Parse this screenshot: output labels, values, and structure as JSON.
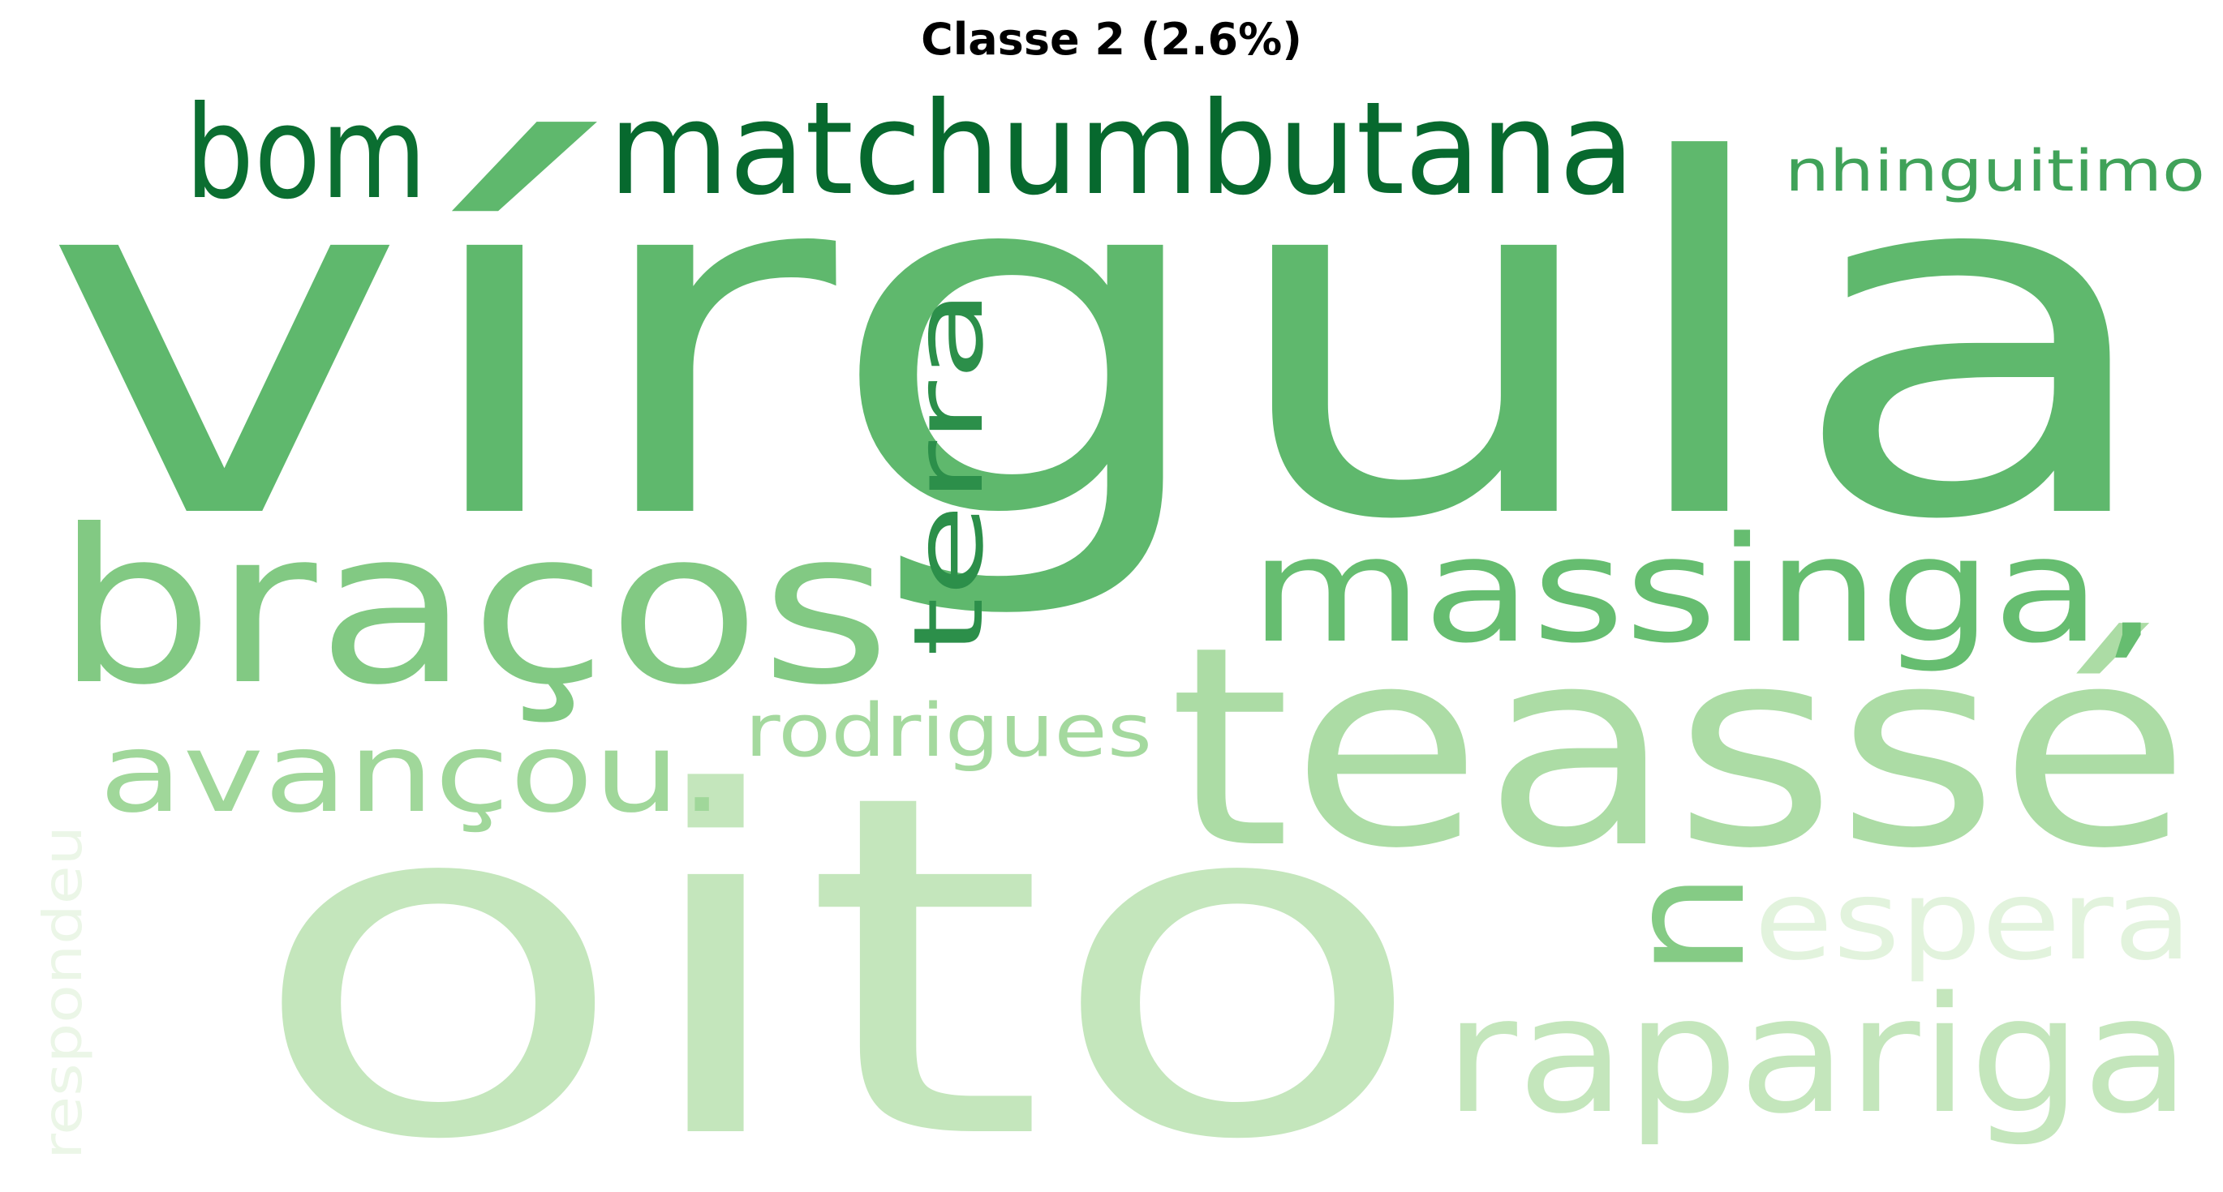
{
  "title": "Classe 2 (2.6%)",
  "words": [
    {
      "id": "virgula",
      "text": "vírgula",
      "color": "#5fb86d",
      "rotated": false
    },
    {
      "id": "oito",
      "text": "oito",
      "color": "#c4e6bc",
      "rotated": false
    },
    {
      "id": "teasse",
      "text": "teassé",
      "color": "#acdca5",
      "rotated": false
    },
    {
      "id": "bracos",
      "text": "braços",
      "color": "#82c983",
      "rotated": false
    },
    {
      "id": "massinga",
      "text": "massinga,",
      "color": "#66bd70",
      "rotated": false
    },
    {
      "id": "matchumbutana",
      "text": "matchumbutana",
      "color": "#07692e",
      "rotated": false
    },
    {
      "id": "bom",
      "text": "bom",
      "color": "#0b6e31",
      "rotated": false
    },
    {
      "id": "rapariga",
      "text": "rapariga",
      "color": "#c4e6bc",
      "rotated": false
    },
    {
      "id": "terra",
      "text": "terra",
      "color": "#2c8f4a",
      "rotated": true
    },
    {
      "id": "n",
      "text": "n",
      "color": "#85cb85",
      "rotated": true
    },
    {
      "id": "avancou",
      "text": "avançou.",
      "color": "#a0d79a",
      "rotated": false
    },
    {
      "id": "espera",
      "text": "espera",
      "color": "#e2f3dd",
      "rotated": false
    },
    {
      "id": "rodrigues",
      "text": "rodrigues",
      "color": "#a4d99e",
      "rotated": false
    },
    {
      "id": "nhinguitimo",
      "text": "nhinguitimo",
      "color": "#40a259",
      "rotated": false
    },
    {
      "id": "respondeu",
      "text": "respondeu",
      "color": "#ebf6e7",
      "rotated": true
    }
  ]
}
